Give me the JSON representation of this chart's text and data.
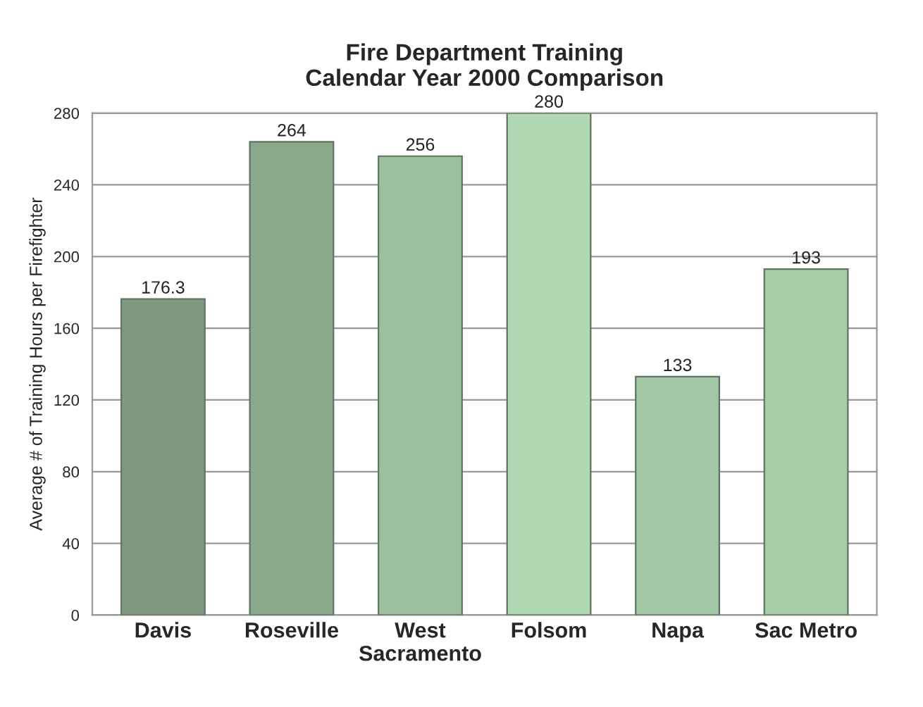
{
  "chart_data": {
    "type": "bar",
    "title": "Fire Department Training\nCalendar Year 2000 Comparison",
    "ylabel": "Average # of Training Hours per Firefighter",
    "categories": [
      "Davis",
      "Roseville",
      "West\nSacramento",
      "Folsom",
      "Napa",
      "Sac Metro"
    ],
    "values": [
      176.3,
      264,
      256,
      280,
      133,
      193
    ],
    "colors": [
      "#7f9a80",
      "#8aa98b",
      "#9cbf9d",
      "#b0d8b2",
      "#a2c7a4",
      "#a6cca8"
    ],
    "ylim": [
      0,
      280
    ],
    "yticks": [
      0,
      40,
      80,
      120,
      160,
      200,
      240,
      280
    ],
    "grid": "y",
    "data_labels": true
  }
}
